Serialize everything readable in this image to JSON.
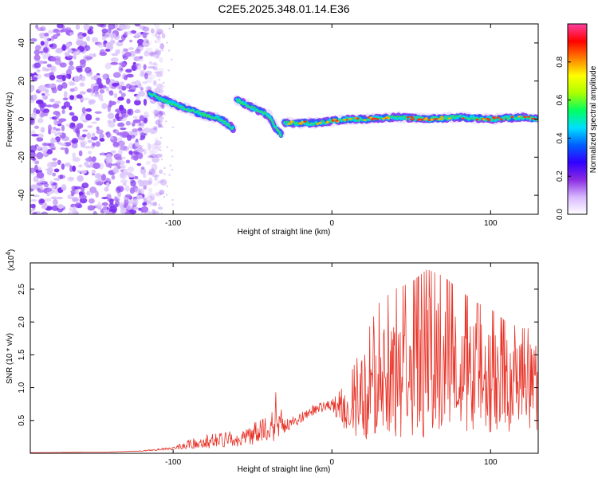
{
  "title": "C2E5.2025.348.01.14.E36",
  "colorbar": {
    "label": "Normalized spectral amplitude",
    "ticks": [
      "0.0",
      "0.2",
      "0.4",
      "0.6",
      "0.8"
    ],
    "tick_values": [
      0.0,
      0.2,
      0.4,
      0.6,
      0.8
    ],
    "range": [
      0,
      1
    ],
    "stops": [
      "#ffffff",
      "#d8b8ff",
      "#8a2be2",
      "#3000ff",
      "#0060ff",
      "#00e0ff",
      "#00ff60",
      "#aaff00",
      "#ffff00",
      "#ff8000",
      "#ff0000",
      "#ff40a0"
    ]
  },
  "chart_data": [
    {
      "type": "heatmap",
      "xlabel": "Height of straight line (km)",
      "ylabel": "Frequency (Hz)",
      "xlim": [
        -190,
        130
      ],
      "ylim": [
        -50,
        50
      ],
      "xticks": [
        -100,
        0,
        100
      ],
      "xtick_labels": [
        "-100",
        "0",
        "100"
      ],
      "yticks": [
        -40,
        -20,
        0,
        20,
        40
      ],
      "ytick_labels": [
        "-40",
        "-20",
        "0",
        "20",
        "40"
      ],
      "noise_region": {
        "x": [
          -190,
          -112
        ],
        "amplitude": 0.25
      },
      "ridge": {
        "x": [
          -115,
          -100,
          -90,
          -80,
          -70,
          -62,
          -60,
          -50,
          -40,
          -35,
          -32,
          -30,
          -20,
          -10,
          0,
          10,
          20,
          40,
          60,
          80,
          100,
          120,
          130
        ],
        "y": [
          13,
          8,
          5,
          2,
          0,
          -5,
          10,
          6,
          2,
          -5,
          -8,
          -2,
          -2,
          -2,
          -1,
          0,
          0,
          1,
          0,
          1,
          0,
          1,
          0
        ],
        "amplitude": 0.55
      }
    },
    {
      "type": "line",
      "xlabel": "Height of straight line (km)",
      "ylabel": "SNR (10 * v/v)",
      "yscale_label": "(x10",
      "yscale_exp": "4",
      "yscale_close": ")",
      "xlim": [
        -190,
        130
      ],
      "ylim": [
        0,
        2.9
      ],
      "xticks": [
        -100,
        0,
        100
      ],
      "xtick_labels": [
        "-100",
        "0",
        "100"
      ],
      "yticks": [
        0.5,
        1.0,
        1.5,
        2.0,
        2.5
      ],
      "ytick_labels": [
        "0.5",
        "1.0",
        "1.5",
        "2.0",
        "2.5"
      ],
      "color": "#e8352a",
      "envelope": {
        "x": [
          -190,
          -140,
          -120,
          -100,
          -90,
          -80,
          -70,
          -60,
          -50,
          -40,
          -35,
          -30,
          -20,
          -15,
          -10,
          0,
          10,
          20,
          30,
          40,
          50,
          60,
          70,
          80,
          90,
          100,
          110,
          120,
          130
        ],
        "y": [
          0.01,
          0.02,
          0.04,
          0.1,
          0.2,
          0.28,
          0.3,
          0.35,
          0.45,
          0.55,
          0.95,
          0.5,
          0.6,
          0.7,
          0.75,
          0.8,
          1.1,
          1.7,
          2.3,
          2.5,
          2.6,
          2.8,
          2.7,
          2.5,
          2.3,
          2.2,
          2.0,
          1.9,
          1.9
        ],
        "baseline": [
          0.01,
          0.02,
          0.03,
          0.05,
          0.07,
          0.08,
          0.08,
          0.1,
          0.12,
          0.15,
          0.2,
          0.3,
          0.45,
          0.55,
          0.6,
          0.65,
          0.3,
          0.2,
          0.2,
          0.2,
          0.25,
          0.2,
          0.3,
          0.3,
          0.3,
          0.3,
          0.3,
          0.3,
          0.3
        ]
      }
    }
  ]
}
